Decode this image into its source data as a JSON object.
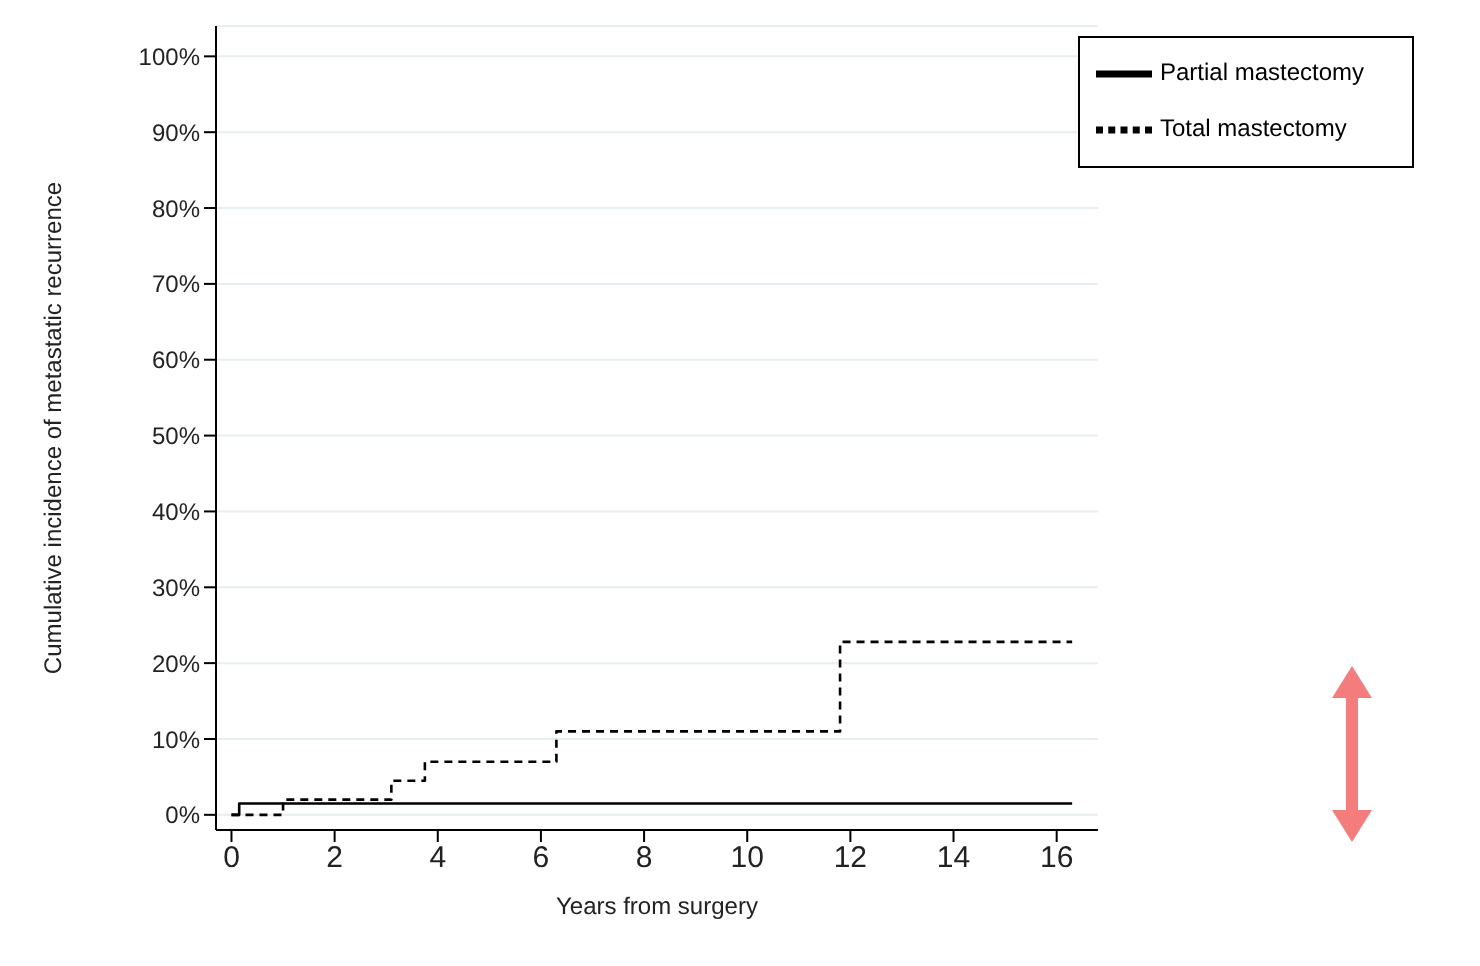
{
  "chart_data": {
    "type": "step",
    "xlabel": "Years from surgery",
    "ylabel": "Cumulative incidence of metastatic recurrence",
    "xlim": [
      -0.3,
      16.8
    ],
    "xticks": [
      0,
      2,
      4,
      6,
      8,
      10,
      12,
      14,
      16
    ],
    "ylim": [
      -2,
      104
    ],
    "yticks": [
      {
        "value": 0,
        "label": "0%"
      },
      {
        "value": 10,
        "label": "10%"
      },
      {
        "value": 20,
        "label": "20%"
      },
      {
        "value": 30,
        "label": "30%"
      },
      {
        "value": 40,
        "label": "40%"
      },
      {
        "value": 50,
        "label": "50%"
      },
      {
        "value": 60,
        "label": "60%"
      },
      {
        "value": 70,
        "label": "70%"
      },
      {
        "value": 80,
        "label": "80%"
      },
      {
        "value": 90,
        "label": "90%"
      },
      {
        "value": 100,
        "label": "100%"
      }
    ],
    "grid": "y",
    "legend": "top right",
    "marker": "none",
    "series": [
      {
        "name": "Partial mastectomy",
        "color": "#000000",
        "line_style": "solid",
        "x": [
          0,
          0.15,
          16.3
        ],
        "values": [
          0,
          1.5,
          1.5
        ]
      },
      {
        "name": "Total mastectomy",
        "color": "#000000",
        "line_style": "dashed",
        "x": [
          0,
          1.0,
          3.1,
          3.75,
          6.3,
          11.8,
          16.3
        ],
        "values": [
          0,
          2,
          4.5,
          7,
          11,
          22.8,
          22.8
        ]
      }
    ]
  }
}
